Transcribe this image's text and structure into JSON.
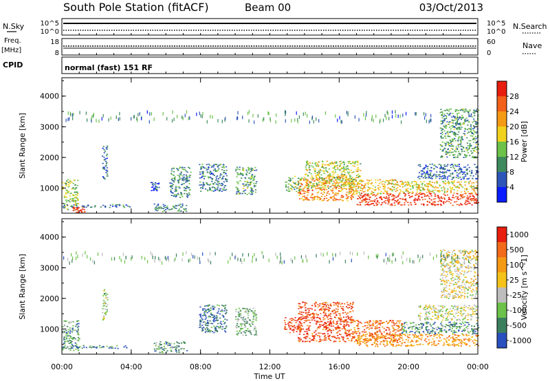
{
  "header": {
    "station": "South Pole Station (fitACF)",
    "beam": "Beam 00",
    "date": "03/Oct/2013"
  },
  "status_panels": {
    "noise": {
      "left_label": "N.Sky",
      "right_label": "N.Search",
      "left_ticks": [
        "10^5",
        "10^0"
      ],
      "right_ticks": [
        "10^5",
        "10^0"
      ]
    },
    "freq": {
      "left_label_top": "Freq.",
      "left_label_bottom": "[MHz]",
      "right_label": "Nave",
      "left_ticks": [
        "18",
        "8"
      ],
      "right_ticks": [
        "60",
        "0"
      ]
    },
    "cpid": {
      "label": "CPID",
      "text": "normal (fast) 151 RF"
    }
  },
  "chart_data": [
    {
      "type": "heatmap",
      "name": "power",
      "ylabel": "Slant Range [km]",
      "xlim": [
        0,
        24
      ],
      "ylim": [
        180,
        4600
      ],
      "y_ticks": [
        1000,
        2000,
        3000,
        4000
      ],
      "color_bar": {
        "label": "Power [dB]",
        "tick_labels": [
          "4",
          "8",
          "12",
          "16",
          "20",
          "24",
          "28"
        ],
        "colors": [
          "#0a1cff",
          "#2e55b8",
          "#3e8a5e",
          "#6cc24a",
          "#f0d21e",
          "#f59a14",
          "#f2601a",
          "#e81e0e"
        ]
      },
      "regions": [
        {
          "t": [
            0.0,
            0.9
          ],
          "r": [
            300,
            1300
          ],
          "level": 0.45
        },
        {
          "t": [
            0.6,
            1.3
          ],
          "r": [
            200,
            400
          ],
          "level": 0.92
        },
        {
          "t": [
            0.0,
            3.9
          ],
          "r": [
            380,
            480
          ],
          "level": 0.25
        },
        {
          "t": [
            2.3,
            2.6
          ],
          "r": [
            1300,
            2400
          ],
          "level": 0.2
        },
        {
          "t": [
            5.1,
            5.6
          ],
          "r": [
            900,
            1200
          ],
          "level": 0.2
        },
        {
          "t": [
            5.3,
            7.2
          ],
          "r": [
            250,
            500
          ],
          "level": 0.3
        },
        {
          "t": [
            6.2,
            7.4
          ],
          "r": [
            700,
            1700
          ],
          "level": 0.3
        },
        {
          "t": [
            7.9,
            9.5
          ],
          "r": [
            900,
            1800
          ],
          "level": 0.28
        },
        {
          "t": [
            10.0,
            11.2
          ],
          "r": [
            800,
            1700
          ],
          "level": 0.35
        },
        {
          "t": [
            12.8,
            13.8
          ],
          "r": [
            900,
            1400
          ],
          "level": 0.4
        },
        {
          "t": [
            13.6,
            16.8
          ],
          "r": [
            600,
            1400
          ],
          "level": 0.72
        },
        {
          "t": [
            14.0,
            17.2
          ],
          "r": [
            1000,
            1900
          ],
          "level": 0.5
        },
        {
          "t": [
            16.5,
            19.5
          ],
          "r": [
            800,
            1300
          ],
          "level": 0.6
        },
        {
          "t": [
            17.0,
            24.0
          ],
          "r": [
            450,
            850
          ],
          "level": 0.93
        },
        {
          "t": [
            19.5,
            24.0
          ],
          "r": [
            850,
            1250
          ],
          "level": 0.58
        },
        {
          "t": [
            20.5,
            24.0
          ],
          "r": [
            1300,
            1800
          ],
          "level": 0.22
        },
        {
          "t": [
            21.8,
            24.0
          ],
          "r": [
            2000,
            3600
          ],
          "level": 0.35
        }
      ]
    },
    {
      "type": "heatmap",
      "name": "velocity",
      "xlabel": "Time UT",
      "ylabel": "Slant Range [km]",
      "xlim": [
        0,
        24
      ],
      "ylim": [
        180,
        4600
      ],
      "x_ticks": [
        "00:00",
        "04:00",
        "08:00",
        "12:00",
        "16:00",
        "20:00",
        "00:00"
      ],
      "y_ticks": [
        1000,
        2000,
        3000,
        4000
      ],
      "color_bar": {
        "label": "Velocity [m s^-1]",
        "tick_labels": [
          "1000",
          "500",
          "100",
          "25",
          "-25",
          "-100",
          "-500",
          "-1000"
        ],
        "colors": [
          "#2a4fbf",
          "#3c7f5e",
          "#6cc24a",
          "#bdbdbd",
          "#f5c21a",
          "#f59a14",
          "#f26a1a",
          "#e81e0e"
        ]
      },
      "regions": [
        {
          "t": [
            0.0,
            1.0
          ],
          "r": [
            300,
            1300
          ],
          "level": 0.25
        },
        {
          "t": [
            0.0,
            3.9
          ],
          "r": [
            380,
            480
          ],
          "level": 0.12
        },
        {
          "t": [
            2.3,
            2.6
          ],
          "r": [
            1300,
            2400
          ],
          "level": 0.4
        },
        {
          "t": [
            5.3,
            7.2
          ],
          "r": [
            250,
            600
          ],
          "level": 0.25
        },
        {
          "t": [
            7.9,
            9.5
          ],
          "r": [
            900,
            1800
          ],
          "level": 0.12
        },
        {
          "t": [
            10.0,
            11.2
          ],
          "r": [
            800,
            1700
          ],
          "level": 0.3
        },
        {
          "t": [
            12.8,
            13.8
          ],
          "r": [
            900,
            1400
          ],
          "level": 0.92
        },
        {
          "t": [
            13.6,
            16.8
          ],
          "r": [
            600,
            1900
          ],
          "level": 0.88
        },
        {
          "t": [
            16.8,
            19.6
          ],
          "r": [
            600,
            1300
          ],
          "level": 0.78
        },
        {
          "t": [
            17.0,
            24.0
          ],
          "r": [
            450,
            850
          ],
          "level": 0.7
        },
        {
          "t": [
            19.5,
            24.0
          ],
          "r": [
            850,
            1250
          ],
          "level": 0.22
        },
        {
          "t": [
            20.5,
            24.0
          ],
          "r": [
            1300,
            1800
          ],
          "level": 0.45
        },
        {
          "t": [
            21.8,
            24.0
          ],
          "r": [
            2000,
            3600
          ],
          "level": 0.5
        }
      ]
    }
  ]
}
